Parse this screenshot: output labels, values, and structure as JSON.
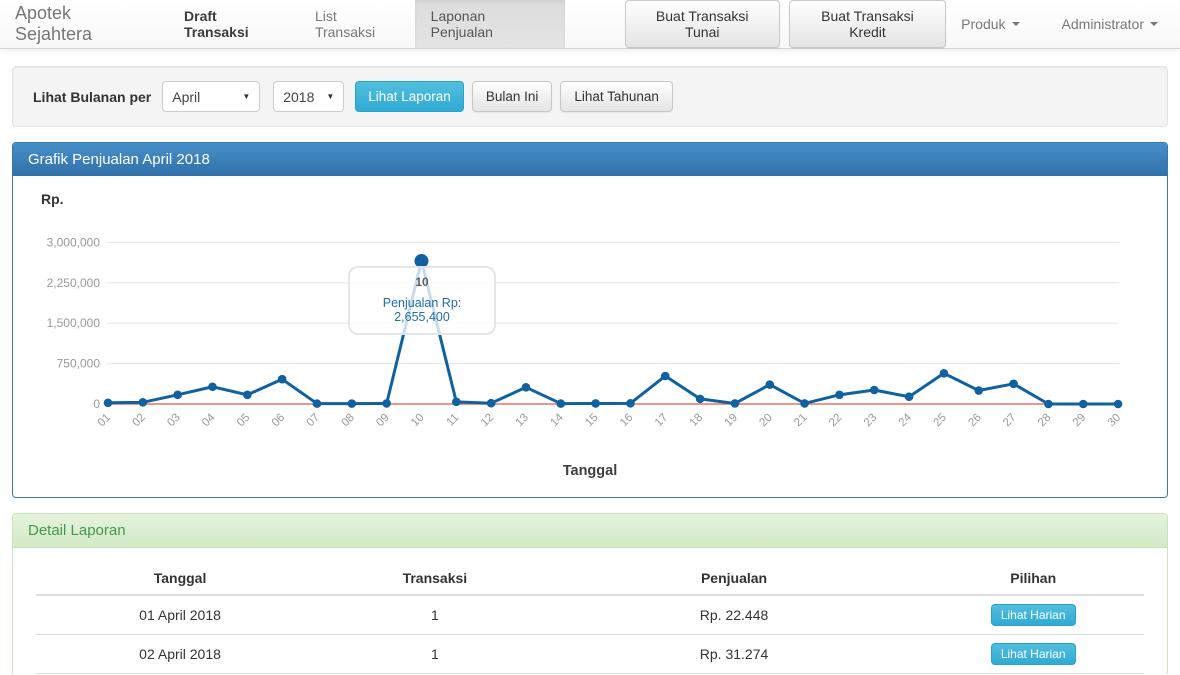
{
  "navbar": {
    "brand": "Apotek Sejahtera",
    "items": [
      {
        "label": "Draft Transaksi"
      },
      {
        "label": "List Transaksi"
      },
      {
        "label": "Laponan Penjualan"
      }
    ],
    "buttons": [
      {
        "label": "Buat Transaksi Tunai"
      },
      {
        "label": "Buat Transaksi Kredit"
      }
    ],
    "dropdowns": [
      {
        "label": "Produk"
      },
      {
        "label": "Administrator"
      }
    ]
  },
  "filter": {
    "label": "Lihat Bulanan per",
    "month_value": "April",
    "year_value": "2018",
    "submit_label": "Lihat Laporan",
    "this_month_label": "Bulan Ini",
    "yearly_label": "Lihat Tahunan"
  },
  "chart_panel": {
    "title": "Grafik Penjualan April 2018",
    "y_axis_title": "Rp.",
    "x_axis_title": "Tanggal",
    "tooltip": {
      "label": "10",
      "value": "Penjualan Rp: 2,655,400"
    }
  },
  "chart_data": {
    "type": "line",
    "title": "Grafik Penjualan April 2018",
    "xlabel": "Tanggal",
    "ylabel": "Rp.",
    "x": [
      "01",
      "02",
      "03",
      "04",
      "05",
      "06",
      "07",
      "08",
      "09",
      "10",
      "11",
      "12",
      "13",
      "14",
      "15",
      "16",
      "17",
      "18",
      "19",
      "20",
      "21",
      "22",
      "23",
      "24",
      "25",
      "26",
      "27",
      "28",
      "29",
      "30"
    ],
    "series": [
      {
        "name": "Penjualan",
        "values": [
          22448,
          31274,
          170000,
          320000,
          170000,
          460000,
          8000,
          8000,
          10000,
          2655400,
          40000,
          15000,
          310000,
          8000,
          10000,
          12000,
          520000,
          95000,
          10000,
          360000,
          10000,
          170000,
          260000,
          135000,
          570000,
          250000,
          375000,
          0,
          0,
          0
        ]
      }
    ],
    "y_ticks": [
      "0",
      "750,000",
      "1,500,000",
      "2,250,000",
      "3,000,000"
    ],
    "ylim": [
      0,
      3000000
    ],
    "grid": true,
    "goal_line": 0,
    "highlight_index": 9,
    "colors": {
      "line": "#10619f",
      "point": "#10619f",
      "goal": "#e8746c",
      "grid": "#e9e9e9",
      "tick_text": "#999999"
    }
  },
  "detail_panel": {
    "title": "Detail Laporan",
    "table": {
      "headers": [
        "Tanggal",
        "Transaksi",
        "Penjualan",
        "Pilihan"
      ],
      "rows": [
        {
          "tanggal": "01 April 2018",
          "transaksi": "1",
          "penjualan": "Rp. 22.448",
          "action": "Lihat Harian"
        },
        {
          "tanggal": "02 April 2018",
          "transaksi": "1",
          "penjualan": "Rp. 31.274",
          "action": "Lihat Harian"
        }
      ]
    }
  },
  "colors": {
    "primary_header": "#3b7cb4",
    "success_header_text": "#44984c",
    "info_button": "#35b0d7",
    "line": "#10619f",
    "goal": "#e8746c"
  }
}
